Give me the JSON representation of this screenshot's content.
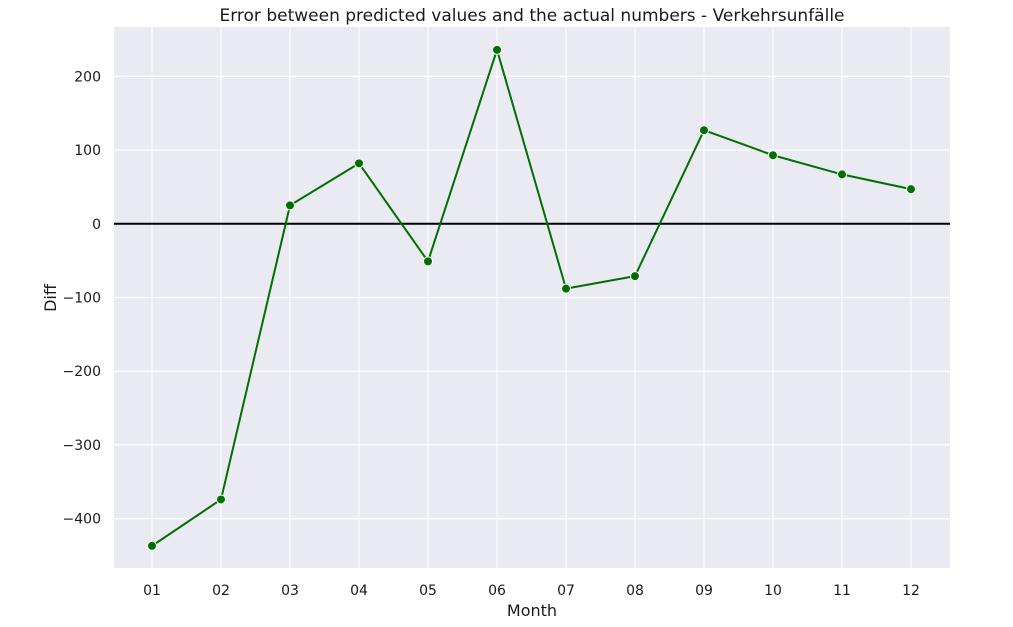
{
  "chart_data": {
    "type": "line",
    "title": "Error between predicted values and the actual numbers - Verkehrsunfälle",
    "xlabel": "Month",
    "ylabel": "Diff",
    "categories": [
      "01",
      "02",
      "03",
      "04",
      "05",
      "06",
      "07",
      "08",
      "09",
      "10",
      "11",
      "12"
    ],
    "series": [
      {
        "values": [
          -437,
          -374,
          25,
          82,
          -51,
          236,
          -88,
          -71,
          127,
          93,
          67,
          47
        ],
        "color": "#007000"
      }
    ],
    "yticks": [
      200,
      100,
      0,
      -100,
      -200,
      -300,
      -400
    ],
    "ytick_labels": [
      "200",
      "100",
      "0",
      "−100",
      "−200",
      "−300",
      "−400"
    ],
    "ylim": [
      -467,
      267
    ],
    "reference_line": {
      "y": 0,
      "color": "#000000"
    },
    "grid": true,
    "background": "#eaeaf2",
    "grid_color": "#ffffff"
  }
}
